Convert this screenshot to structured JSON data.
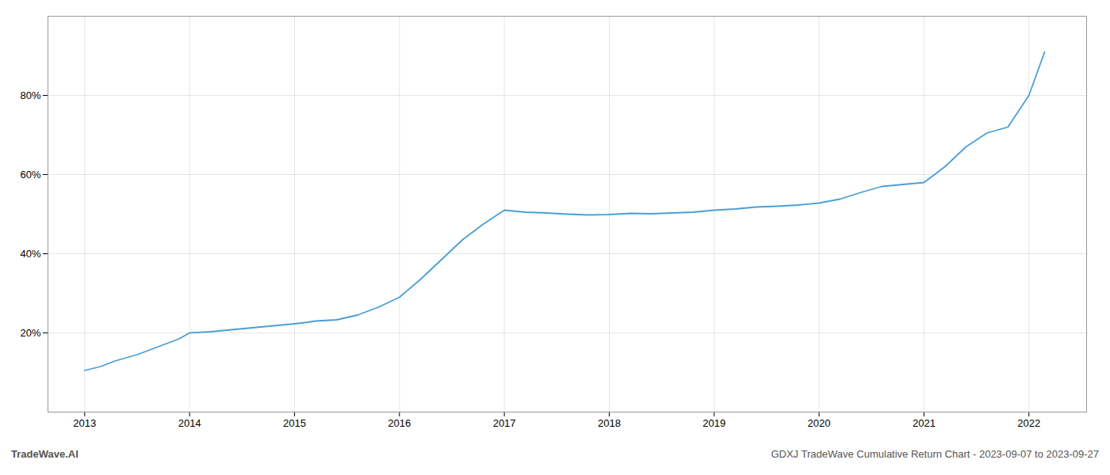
{
  "chart_data": {
    "type": "line",
    "title": "GDXJ TradeWave Cumulative Return Chart - 2023-09-07 to 2023-09-27",
    "annotations": [
      "TradeWave.AI"
    ],
    "color": "#4a9fd4",
    "grid": true,
    "x": [
      2013.0,
      2013.15,
      2013.3,
      2013.5,
      2013.7,
      2013.9,
      2014.0,
      2014.2,
      2014.4,
      2014.6,
      2014.8,
      2015.0,
      2015.1,
      2015.2,
      2015.4,
      2015.6,
      2015.8,
      2016.0,
      2016.2,
      2016.4,
      2016.6,
      2016.8,
      2017.0,
      2017.2,
      2017.4,
      2017.6,
      2017.8,
      2018.0,
      2018.2,
      2018.4,
      2018.6,
      2018.8,
      2019.0,
      2019.2,
      2019.4,
      2019.6,
      2019.8,
      2020.0,
      2020.2,
      2020.4,
      2020.6,
      2020.8,
      2021.0,
      2021.2,
      2021.4,
      2021.6,
      2021.8,
      2022.0,
      2022.15
    ],
    "values": [
      10.5,
      11.5,
      13.0,
      14.5,
      16.5,
      18.5,
      20.0,
      20.3,
      20.8,
      21.3,
      21.8,
      22.3,
      22.6,
      23.0,
      23.3,
      24.5,
      26.5,
      29.0,
      33.5,
      38.5,
      43.5,
      47.5,
      51.0,
      50.5,
      50.3,
      50.0,
      49.8,
      49.9,
      50.2,
      50.1,
      50.3,
      50.5,
      51.0,
      51.3,
      51.8,
      52.0,
      52.3,
      52.8,
      53.8,
      55.5,
      57.0,
      57.5,
      58.0,
      62.0,
      67.0,
      70.5,
      72.0,
      80.0,
      91.0
    ],
    "xlim": [
      2012.65,
      2022.55
    ],
    "xticks": [
      2013,
      2014,
      2015,
      2016,
      2017,
      2018,
      2019,
      2020,
      2021,
      2022
    ],
    "ylim": [
      0,
      100
    ],
    "yticks": [
      {
        "value": 20,
        "label": "20%"
      },
      {
        "value": 40,
        "label": "40%"
      },
      {
        "value": 60,
        "label": "60%"
      },
      {
        "value": 80,
        "label": "80%"
      }
    ]
  }
}
